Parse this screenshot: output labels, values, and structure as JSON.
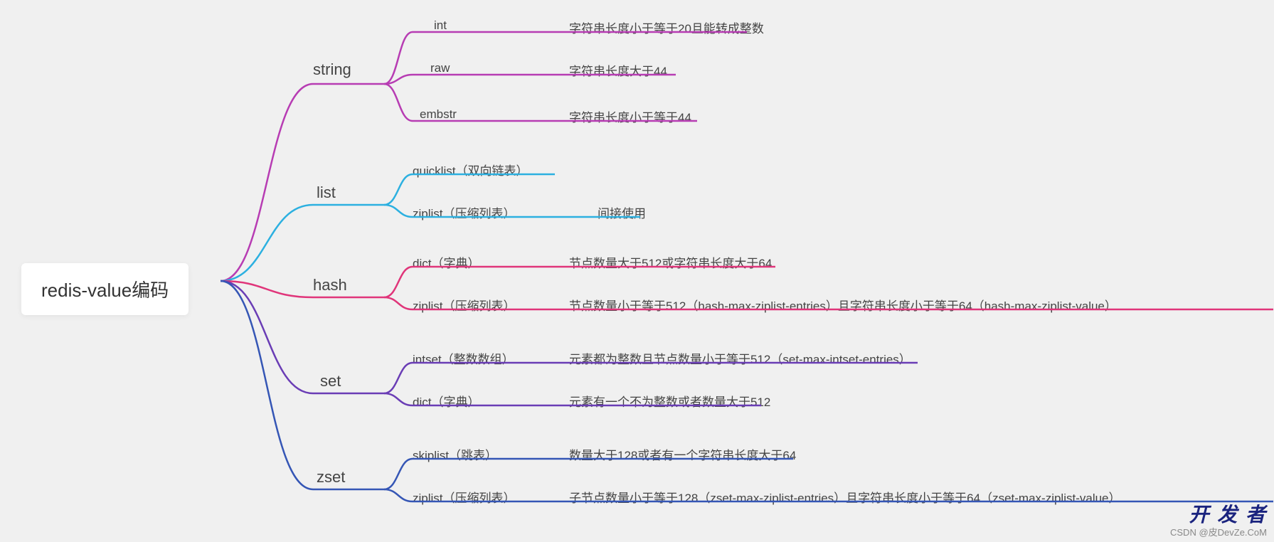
{
  "root": {
    "label": "redis-value编码"
  },
  "categories": {
    "string": {
      "label": "string",
      "color": "#b73cb3"
    },
    "list": {
      "label": "list",
      "color": "#2cb0e0"
    },
    "hash": {
      "label": "hash",
      "color": "#e0357a"
    },
    "set": {
      "label": "set",
      "color": "#6a3db5"
    },
    "zset": {
      "label": "zset",
      "color": "#3556b5"
    }
  },
  "leaves": {
    "s_int": {
      "name": "int",
      "desc": "字符串长度小于等于20且能转成整数"
    },
    "s_raw": {
      "name": "raw",
      "desc": "字符串长度大于44"
    },
    "s_embstr": {
      "name": "embstr",
      "desc": "字符串长度小于等于44"
    },
    "l_quick": {
      "name": "quicklist（双向链表）",
      "desc": ""
    },
    "l_zip": {
      "name": "ziplist（压缩列表）",
      "desc": "间接使用"
    },
    "h_dict": {
      "name": "dict（字典）",
      "desc": "节点数量大于512或字符串长度大于64"
    },
    "h_zip": {
      "name": "ziplist（压缩列表）",
      "desc": "节点数量小于等于512（hash-max-ziplist-entries）且字符串长度小于等于64（hash-max-ziplist-value）"
    },
    "se_intset": {
      "name": "intset（整数数组）",
      "desc": "元素都为整数且节点数量小于等于512（set-max-intset-entries）"
    },
    "se_dict": {
      "name": "dict（字典）",
      "desc": "元素有一个不为整数或者数量大于512"
    },
    "z_skip": {
      "name": "skiplist（跳表）",
      "desc": "数量大于128或者有一个字符串长度大于64"
    },
    "z_zip": {
      "name": "ziplist（压缩列表）",
      "desc": "子节点数量小于等于128（zset-max-ziplist-entries）且字符串长度小于等于64（zset-max-ziplist-value）"
    }
  },
  "watermark": {
    "main": "开 发 者",
    "sub": "CSDN @皮DevZe.CoM"
  },
  "layout": {
    "rootX": 310,
    "rootY": 395,
    "catX": 440,
    "catEnd": 540,
    "nameX": 580,
    "nameEnd": 780,
    "descX": 800,
    "stroke": 2.5,
    "catY": {
      "string": 105,
      "list": 275,
      "hash": 405,
      "set": 540,
      "zset": 675
    },
    "leafY": {
      "s_int": 45,
      "s_raw": 105,
      "s_embstr": 170,
      "l_quick": 245,
      "l_zip": 305,
      "h_dict": 375,
      "h_zip": 435,
      "se_intset": 510,
      "se_dict": 570,
      "z_skip": 645,
      "z_zip": 705
    },
    "descEnd": {
      "s_int": 1050,
      "s_raw": 950,
      "s_embstr": 980,
      "l_quick": 780,
      "l_zip": 900,
      "h_dict": 1090,
      "h_zip": 1790,
      "se_intset": 1290,
      "se_dict": 1070,
      "z_skip": 1115,
      "z_zip": 1790
    },
    "catToLeaves": {
      "string": [
        "s_int",
        "s_raw",
        "s_embstr"
      ],
      "list": [
        "l_quick",
        "l_zip"
      ],
      "hash": [
        "h_dict",
        "h_zip"
      ],
      "set": [
        "se_intset",
        "se_dict"
      ],
      "zset": [
        "z_skip",
        "z_zip"
      ]
    }
  }
}
